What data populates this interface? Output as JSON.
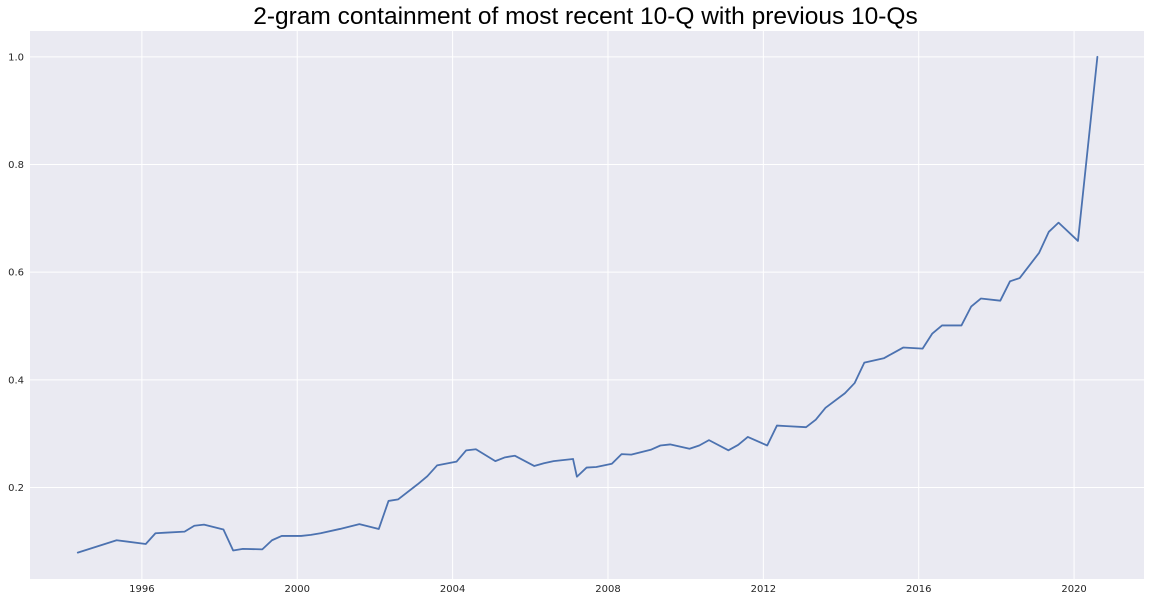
{
  "chart_data": {
    "type": "line",
    "title": "2-gram containment of most recent 10-Q with previous 10-Qs",
    "xlabel": "",
    "ylabel": "",
    "xlim": [
      1993.12,
      2021.8
    ],
    "ylim": [
      0.03,
      1.048
    ],
    "x_ticks": [
      1996,
      2000,
      2004,
      2008,
      2012,
      2016,
      2020
    ],
    "x_tick_labels": [
      "1996",
      "2000",
      "2004",
      "2008",
      "2012",
      "2016",
      "2020"
    ],
    "y_ticks": [
      0.2,
      0.4,
      0.6,
      0.8,
      1.0
    ],
    "y_tick_labels": [
      "0.2",
      "0.4",
      "0.6",
      "0.8",
      "1.0"
    ],
    "grid": true,
    "background": "#eaeaf2",
    "line_color": "#4c72b0",
    "series": [
      {
        "x": [
          1994.35,
          1995.35,
          1996.1,
          1996.35,
          1996.6,
          1997.1,
          1997.35,
          1997.6,
          1998.1,
          1998.35,
          1998.6,
          1999.1,
          1999.35,
          1999.6,
          2000.1,
          2000.35,
          2000.6,
          2001.1,
          2001.6,
          2002.1,
          2002.35,
          2002.6,
          2003.1,
          2003.35,
          2003.6,
          2004.1,
          2004.35,
          2004.6,
          2005.1,
          2005.35,
          2005.6,
          2006.1,
          2006.35,
          2006.6,
          2007.1,
          2007.2,
          2007.45,
          2007.7,
          2008.1,
          2008.35,
          2008.6,
          2009.1,
          2009.35,
          2009.6,
          2010.1,
          2010.35,
          2010.6,
          2011.1,
          2011.35,
          2011.6,
          2012.1,
          2012.35,
          2012.6,
          2013.1,
          2013.35,
          2013.6,
          2014.1,
          2014.35,
          2014.6,
          2015.1,
          2015.35,
          2015.6,
          2016.1,
          2016.35,
          2016.6,
          2017.1,
          2017.35,
          2017.6,
          2018.1,
          2018.35,
          2018.6,
          2019.1,
          2019.35,
          2019.6,
          2020.1,
          2020.6
        ],
        "y": [
          0.079,
          0.102,
          0.095,
          0.115,
          0.116,
          0.118,
          0.129,
          0.131,
          0.122,
          0.083,
          0.086,
          0.085,
          0.102,
          0.11,
          0.11,
          0.112,
          0.115,
          0.123,
          0.132,
          0.123,
          0.175,
          0.178,
          0.206,
          0.221,
          0.241,
          0.248,
          0.269,
          0.271,
          0.249,
          0.256,
          0.259,
          0.24,
          0.245,
          0.249,
          0.253,
          0.22,
          0.237,
          0.238,
          0.244,
          0.262,
          0.261,
          0.27,
          0.278,
          0.28,
          0.272,
          0.278,
          0.288,
          0.269,
          0.279,
          0.294,
          0.278,
          0.315,
          0.314,
          0.312,
          0.326,
          0.348,
          0.375,
          0.394,
          0.432,
          0.44,
          0.45,
          0.46,
          0.458,
          0.486,
          0.501,
          0.501,
          0.536,
          0.551,
          0.547,
          0.583,
          0.589,
          0.636,
          0.675,
          0.692,
          0.658,
          1.0
        ]
      }
    ]
  }
}
